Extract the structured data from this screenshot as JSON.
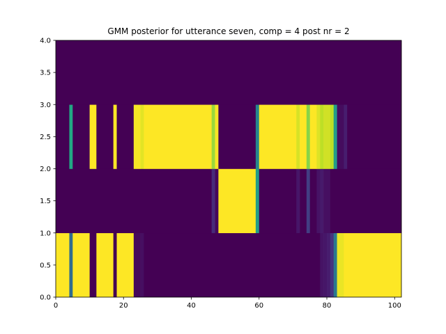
{
  "chart_data": {
    "type": "heatmap",
    "title": "GMM posterior for utterance seven, comp = 4 post nr = 2",
    "xlabel": "",
    "ylabel": "",
    "xlim": [
      0,
      102
    ],
    "ylim": [
      0.0,
      4.0
    ],
    "x_ticks": [
      0,
      20,
      40,
      60,
      80,
      100
    ],
    "y_ticks": [
      "0.0",
      "0.5",
      "1.0",
      "1.5",
      "2.0",
      "2.5",
      "3.0",
      "3.5",
      "4.0"
    ],
    "colormap": "viridis",
    "value_range": [
      0,
      1
    ],
    "grid": false,
    "rows": [
      {
        "y_range": [
          0,
          1
        ],
        "segments": [
          [
            0,
            4,
            1.0
          ],
          [
            4,
            5,
            0.35
          ],
          [
            5,
            10,
            1.0
          ],
          [
            10,
            12,
            0.0
          ],
          [
            12,
            17,
            1.0
          ],
          [
            17,
            18,
            0.0
          ],
          [
            18,
            23,
            1.0
          ],
          [
            23,
            25,
            0.02
          ],
          [
            25,
            26,
            0.04
          ],
          [
            26,
            78,
            0.0
          ],
          [
            78,
            79,
            0.05
          ],
          [
            79,
            80,
            0.06
          ],
          [
            80,
            81,
            0.08
          ],
          [
            81,
            82,
            0.15
          ],
          [
            82,
            83,
            0.4
          ],
          [
            83,
            85,
            0.97
          ],
          [
            85,
            102,
            1.0
          ]
        ]
      },
      {
        "y_range": [
          1,
          2
        ],
        "segments": [
          [
            0,
            46,
            0.0
          ],
          [
            46,
            47,
            0.12
          ],
          [
            47,
            48,
            0.02
          ],
          [
            48,
            59,
            1.0
          ],
          [
            59,
            60,
            0.55
          ],
          [
            60,
            71,
            0.0
          ],
          [
            71,
            72,
            0.06
          ],
          [
            72,
            74,
            0.0
          ],
          [
            74,
            75,
            0.18
          ],
          [
            75,
            77,
            0.0
          ],
          [
            77,
            78,
            0.05
          ],
          [
            78,
            79,
            0.07
          ],
          [
            79,
            81,
            0.04
          ],
          [
            81,
            102,
            0.0
          ]
        ]
      },
      {
        "y_range": [
          2,
          3
        ],
        "segments": [
          [
            0,
            4,
            0.0
          ],
          [
            4,
            5,
            0.6
          ],
          [
            5,
            10,
            0.0
          ],
          [
            10,
            12,
            1.0
          ],
          [
            12,
            17,
            0.0
          ],
          [
            17,
            18,
            1.0
          ],
          [
            18,
            23,
            0.0
          ],
          [
            23,
            25,
            0.99
          ],
          [
            25,
            26,
            0.96
          ],
          [
            26,
            46,
            1.0
          ],
          [
            46,
            47,
            0.85
          ],
          [
            47,
            48,
            0.99
          ],
          [
            48,
            59,
            0.0
          ],
          [
            59,
            60,
            0.45
          ],
          [
            60,
            71,
            1.0
          ],
          [
            71,
            72,
            0.94
          ],
          [
            72,
            74,
            1.0
          ],
          [
            74,
            75,
            0.82
          ],
          [
            75,
            77,
            1.0
          ],
          [
            77,
            78,
            0.95
          ],
          [
            78,
            79,
            0.9
          ],
          [
            79,
            81,
            0.93
          ],
          [
            81,
            82,
            0.9
          ],
          [
            82,
            83,
            0.55
          ],
          [
            83,
            85,
            0.03
          ],
          [
            85,
            86,
            0.08
          ],
          [
            86,
            102,
            0.0
          ]
        ]
      },
      {
        "y_range": [
          3,
          4
        ],
        "segments": [
          [
            0,
            102,
            0.0
          ]
        ]
      }
    ]
  }
}
